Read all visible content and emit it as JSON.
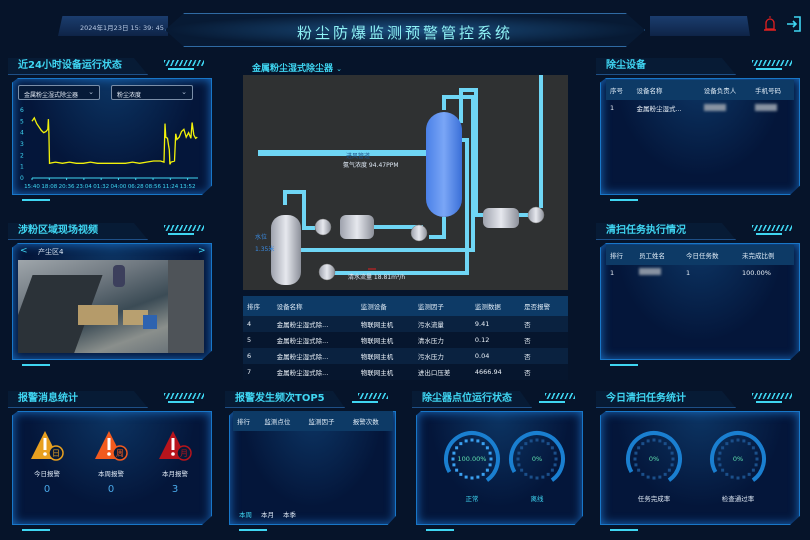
{
  "header": {
    "datetime": "2024年1月23日  15: 39: 45",
    "title": "粉尘防爆监测预警管控系统",
    "alarm_icon": "siren-icon",
    "exit_icon": "logout-icon"
  },
  "run_status": {
    "title": "近24小时设备运行状态",
    "device_select": "金属粉尘湿式除尘器",
    "factor_select": "粉尘浓度",
    "chart_data": {
      "type": "line",
      "ylim": [
        0,
        6
      ],
      "yticks": [
        0,
        1,
        2,
        3,
        4,
        5,
        6
      ],
      "xticks": [
        "15:40",
        "18:08",
        "20:36",
        "23:04",
        "01:32",
        "04:00",
        "06:28",
        "08:56",
        "11:24",
        "13:52"
      ],
      "grid": false,
      "color": "#f2f20a",
      "x": [
        "15:40",
        "16:00",
        "16:20",
        "16:40",
        "17:00",
        "17:20",
        "17:40",
        "17:55",
        "18:00",
        "18:05",
        "18:10",
        "19:00",
        "20:00",
        "21:00",
        "22:00",
        "23:00",
        "00:00",
        "01:00",
        "02:00",
        "03:00",
        "04:00",
        "05:00",
        "06:00",
        "07:00",
        "08:00",
        "09:00",
        "10:00",
        "10:30",
        "10:38",
        "10:45",
        "11:00",
        "11:10",
        "11:15",
        "11:20",
        "11:30",
        "12:00",
        "12:10",
        "12:20",
        "12:40",
        "13:00",
        "13:20",
        "13:40",
        "14:00",
        "14:20",
        "14:30",
        "14:45",
        "15:00",
        "15:15"
      ],
      "y": [
        5.0,
        5.3,
        4.8,
        4.5,
        4.2,
        4.0,
        4.1,
        4.3,
        5.2,
        4.0,
        1.3,
        1.4,
        1.3,
        1.4,
        1.3,
        1.3,
        1.4,
        1.3,
        1.3,
        1.3,
        1.3,
        1.3,
        1.4,
        1.3,
        1.4,
        1.5,
        1.5,
        1.4,
        4.8,
        3.6,
        3.5,
        2.8,
        2.5,
        1.2,
        1.4,
        1.5,
        3.9,
        3.4,
        3.6,
        4.1,
        4.3,
        3.6,
        4.0,
        3.5,
        4.9,
        3.8,
        3.5,
        3.6
      ]
    }
  },
  "video": {
    "title": "涉粉区域现场视频",
    "area": "产尘区4",
    "prev_icon": "chevron-left-icon",
    "next_icon": "chevron-right-icon"
  },
  "alarm_stats": {
    "title": "报警消息统计",
    "items": [
      {
        "label": "今日报警",
        "badge": "日",
        "value": "0",
        "color": "#e8a020"
      },
      {
        "label": "本周报警",
        "badge": "周",
        "value": "0",
        "color": "#f25a1e"
      },
      {
        "label": "本月报警",
        "badge": "月",
        "value": "3",
        "color": "#b8141c"
      }
    ]
  },
  "center": {
    "device_title": "金属粉尘湿式除尘器",
    "diagram": {
      "inlet": "进风管道",
      "gas": "氨气浓度 94.47PPM",
      "level_label": "水位",
      "level_value": "1.35米",
      "flow": "清水流量 18.81m³/h"
    },
    "table": {
      "headers": [
        "排序",
        "设备名称",
        "监测设备",
        "监测因子",
        "监测数据",
        "是否报警"
      ],
      "rows": [
        [
          "4",
          "金属粉尘湿式除...",
          "物联网主机",
          "污水流量",
          "9.41",
          "否"
        ],
        [
          "5",
          "金属粉尘湿式除...",
          "物联网主机",
          "清水压力",
          "0.12",
          "否"
        ],
        [
          "6",
          "金属粉尘湿式除...",
          "物联网主机",
          "污水压力",
          "0.04",
          "否"
        ],
        [
          "7",
          "金属粉尘湿式除...",
          "物联网主机",
          "进出口压差",
          "4666.94",
          "否"
        ]
      ]
    }
  },
  "top5": {
    "title": "报警发生频次TOP5",
    "headers": [
      "排行",
      "监测点位",
      "监测因子",
      "报警次数"
    ],
    "tabs": [
      "本周",
      "本月",
      "本季"
    ]
  },
  "point_status": {
    "title": "除尘器点位运行状态",
    "gauges": [
      {
        "value": "100.00%",
        "label": "正常",
        "fraction": 1.0
      },
      {
        "value": "0%",
        "label": "离线",
        "fraction": 0
      }
    ]
  },
  "dust_devices": {
    "title": "除尘设备",
    "headers": [
      "序号",
      "设备名称",
      "设备负责人",
      "手机号码"
    ],
    "rows": [
      [
        "1",
        "金属粉尘湿式...",
        "",
        ""
      ]
    ]
  },
  "clean_tasks": {
    "title": "清扫任务执行情况",
    "headers": [
      "排行",
      "员工姓名",
      "今日任务数",
      "未完成比例"
    ],
    "rows": [
      [
        "1",
        "",
        "1",
        "100.00%"
      ]
    ]
  },
  "clean_stats": {
    "title": "今日清扫任务统计",
    "gauges": [
      {
        "value": "0%",
        "label": "任务完成率",
        "fraction": 0
      },
      {
        "value": "0%",
        "label": "检查通过率",
        "fraction": 0
      }
    ]
  }
}
